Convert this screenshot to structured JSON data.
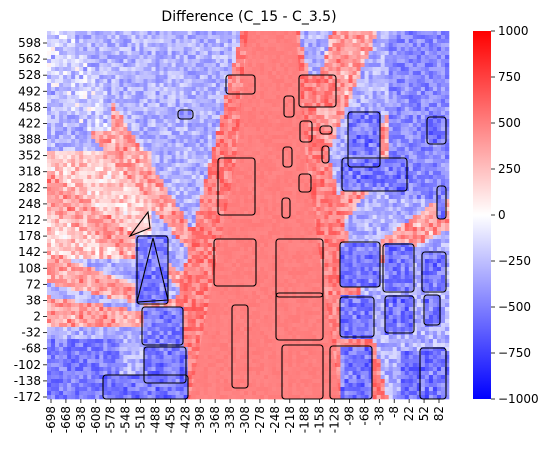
{
  "chart_data": {
    "type": "heatmap",
    "title": "Difference (C_15 - C_3.5)",
    "xlabel": "",
    "ylabel": "",
    "x_tick_labels": [
      "-698",
      "-668",
      "-638",
      "-608",
      "-578",
      "-548",
      "-518",
      "-488",
      "-458",
      "-428",
      "-398",
      "-368",
      "-338",
      "-308",
      "-278",
      "-248",
      "-218",
      "-188",
      "-158",
      "-128",
      "-98",
      "-68",
      "-38",
      "-8",
      "22",
      "52",
      "82"
    ],
    "y_tick_labels": [
      "598",
      "562",
      "528",
      "492",
      "458",
      "422",
      "388",
      "352",
      "318",
      "282",
      "248",
      "212",
      "178",
      "142",
      "108",
      "72",
      "38",
      "2",
      "-32",
      "-68",
      "-102",
      "-138",
      "-172"
    ],
    "x_range": [
      -698,
      100
    ],
    "y_range": [
      -185,
      612
    ],
    "colorbar": {
      "colormap": "bwr",
      "min": -1000,
      "max": 1000,
      "tick_labels": [
        "1000",
        "750",
        "500",
        "250",
        "0",
        "−250",
        "−500",
        "−750",
        "−1000"
      ]
    },
    "description_values": {
      "central_corridor_difference": 500,
      "dominant_pattern": "positive (red/pink) differences along central street corridor and diagonal bands; negative (blue) differences in outer regions and behind building footprints"
    },
    "colors": {
      "positive": "#ff0000",
      "neutral": "#ffffff",
      "negative": "#0000ff",
      "central_fill": "#ff8080",
      "outline": "#000000"
    }
  }
}
